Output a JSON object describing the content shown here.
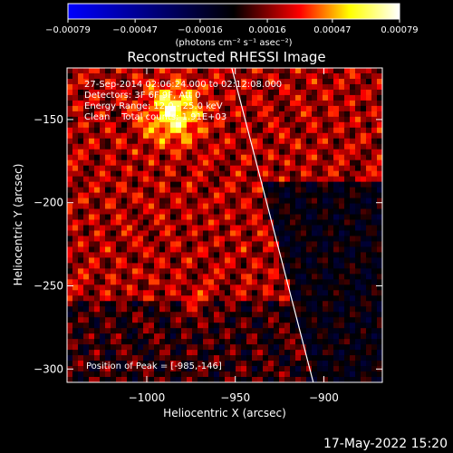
{
  "chart_data": {
    "type": "heatmap",
    "title": "Reconstructed RHESSI Image",
    "xlabel": "Heliocentric X (arcsec)",
    "ylabel": "Heliocentric Y (arcsec)",
    "xlim": [
      -1045,
      -867
    ],
    "ylim": [
      -308,
      -119
    ],
    "xticks": [
      -1000,
      -950,
      -900
    ],
    "xtick_labels": [
      "−1000",
      "−950",
      "−900"
    ],
    "yticks": [
      -150,
      -200,
      -250,
      -300
    ],
    "ytick_labels": [
      "−150",
      "−200",
      "−250",
      "−300"
    ],
    "colorbar": {
      "ticks": [
        -0.00079,
        -0.00047,
        -0.00016,
        0.00016,
        0.00047,
        0.00079
      ],
      "tick_labels": [
        "−0.00079",
        "−0.00047",
        "−0.00016",
        "0.00016",
        "0.00047",
        "0.00079"
      ],
      "units_label": "(photons cm⁻² s⁻¹ asec⁻²)",
      "range": [
        -0.00079,
        0.00079
      ],
      "colormap": [
        "#0000ff",
        "#000000",
        "#ff0000",
        "#ffff00",
        "#ffffff"
      ]
    },
    "annotations": [
      "27-Sep-2014 02:06:24.000 to 02:12:08.000",
      "Detectors: 3F 6F 9F, Att 0",
      "Energy Range: 12.0 - 25.0 keV",
      "Clean    Total counts: 1.91E+03"
    ],
    "peak_label": "Position of Peak = [-985,-146]",
    "peak": [
      -985,
      -146
    ],
    "limb_line": [
      [
        -952,
        -119
      ],
      [
        -906,
        -308
      ]
    ],
    "grid": false
  },
  "footer_date": "17-May-2022 15:20"
}
